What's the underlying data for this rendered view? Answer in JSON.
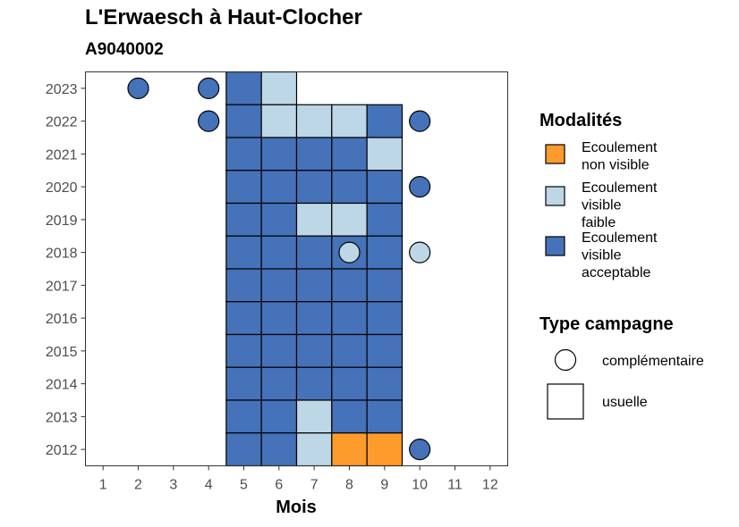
{
  "chart_data": {
    "type": "heatmap",
    "title": "L'Erwaesch à Haut-Clocher",
    "subtitle": "A9040002",
    "xlabel": "Mois",
    "ylabel": "",
    "x_ticks": [
      "1",
      "2",
      "3",
      "4",
      "5",
      "6",
      "7",
      "8",
      "9",
      "10",
      "11",
      "12"
    ],
    "y_ticks": [
      "2023",
      "2022",
      "2021",
      "2020",
      "2019",
      "2018",
      "2017",
      "2016",
      "2015",
      "2014",
      "2013",
      "2012"
    ],
    "xlim": [
      0.5,
      12.5
    ],
    "ylim": [
      2011.5,
      2023.5
    ],
    "grid": false,
    "legend_position": "right",
    "colors": {
      "non_visible": "#FE9B2D",
      "faible": "#BDD7E7",
      "acceptable": "#4572B8"
    },
    "legend": {
      "modalites_title": "Modalités",
      "modalites": [
        {
          "key": "non_visible",
          "lines": [
            "Ecoulement",
            "non visible"
          ]
        },
        {
          "key": "faible",
          "lines": [
            "Ecoulement",
            "visible",
            "faible"
          ]
        },
        {
          "key": "acceptable",
          "lines": [
            "Ecoulement",
            "visible",
            "acceptable"
          ]
        }
      ],
      "type_title": "Type campagne",
      "types": [
        {
          "key": "complementaire",
          "label": "complémentaire"
        },
        {
          "key": "usuelle",
          "label": "usuelle"
        }
      ]
    },
    "usuelle": [
      {
        "year": 2023,
        "month": 5,
        "value": "acceptable"
      },
      {
        "year": 2023,
        "month": 6,
        "value": "faible"
      },
      {
        "year": 2022,
        "month": 5,
        "value": "acceptable"
      },
      {
        "year": 2022,
        "month": 6,
        "value": "faible"
      },
      {
        "year": 2022,
        "month": 7,
        "value": "faible"
      },
      {
        "year": 2022,
        "month": 8,
        "value": "faible"
      },
      {
        "year": 2022,
        "month": 9,
        "value": "acceptable"
      },
      {
        "year": 2021,
        "month": 5,
        "value": "acceptable"
      },
      {
        "year": 2021,
        "month": 6,
        "value": "acceptable"
      },
      {
        "year": 2021,
        "month": 7,
        "value": "acceptable"
      },
      {
        "year": 2021,
        "month": 8,
        "value": "acceptable"
      },
      {
        "year": 2021,
        "month": 9,
        "value": "faible"
      },
      {
        "year": 2020,
        "month": 5,
        "value": "acceptable"
      },
      {
        "year": 2020,
        "month": 6,
        "value": "acceptable"
      },
      {
        "year": 2020,
        "month": 7,
        "value": "acceptable"
      },
      {
        "year": 2020,
        "month": 8,
        "value": "acceptable"
      },
      {
        "year": 2020,
        "month": 9,
        "value": "acceptable"
      },
      {
        "year": 2019,
        "month": 5,
        "value": "acceptable"
      },
      {
        "year": 2019,
        "month": 6,
        "value": "acceptable"
      },
      {
        "year": 2019,
        "month": 7,
        "value": "faible"
      },
      {
        "year": 2019,
        "month": 8,
        "value": "faible"
      },
      {
        "year": 2019,
        "month": 9,
        "value": "acceptable"
      },
      {
        "year": 2018,
        "month": 5,
        "value": "acceptable"
      },
      {
        "year": 2018,
        "month": 6,
        "value": "acceptable"
      },
      {
        "year": 2018,
        "month": 7,
        "value": "acceptable"
      },
      {
        "year": 2018,
        "month": 8,
        "value": "acceptable"
      },
      {
        "year": 2018,
        "month": 9,
        "value": "acceptable"
      },
      {
        "year": 2017,
        "month": 5,
        "value": "acceptable"
      },
      {
        "year": 2017,
        "month": 6,
        "value": "acceptable"
      },
      {
        "year": 2017,
        "month": 7,
        "value": "acceptable"
      },
      {
        "year": 2017,
        "month": 8,
        "value": "acceptable"
      },
      {
        "year": 2017,
        "month": 9,
        "value": "acceptable"
      },
      {
        "year": 2016,
        "month": 5,
        "value": "acceptable"
      },
      {
        "year": 2016,
        "month": 6,
        "value": "acceptable"
      },
      {
        "year": 2016,
        "month": 7,
        "value": "acceptable"
      },
      {
        "year": 2016,
        "month": 8,
        "value": "acceptable"
      },
      {
        "year": 2016,
        "month": 9,
        "value": "acceptable"
      },
      {
        "year": 2015,
        "month": 5,
        "value": "acceptable"
      },
      {
        "year": 2015,
        "month": 6,
        "value": "acceptable"
      },
      {
        "year": 2015,
        "month": 7,
        "value": "acceptable"
      },
      {
        "year": 2015,
        "month": 8,
        "value": "acceptable"
      },
      {
        "year": 2015,
        "month": 9,
        "value": "acceptable"
      },
      {
        "year": 2014,
        "month": 5,
        "value": "acceptable"
      },
      {
        "year": 2014,
        "month": 6,
        "value": "acceptable"
      },
      {
        "year": 2014,
        "month": 7,
        "value": "acceptable"
      },
      {
        "year": 2014,
        "month": 8,
        "value": "acceptable"
      },
      {
        "year": 2014,
        "month": 9,
        "value": "acceptable"
      },
      {
        "year": 2013,
        "month": 5,
        "value": "acceptable"
      },
      {
        "year": 2013,
        "month": 6,
        "value": "acceptable"
      },
      {
        "year": 2013,
        "month": 7,
        "value": "faible"
      },
      {
        "year": 2013,
        "month": 8,
        "value": "acceptable"
      },
      {
        "year": 2013,
        "month": 9,
        "value": "acceptable"
      },
      {
        "year": 2012,
        "month": 5,
        "value": "acceptable"
      },
      {
        "year": 2012,
        "month": 6,
        "value": "acceptable"
      },
      {
        "year": 2012,
        "month": 7,
        "value": "faible"
      },
      {
        "year": 2012,
        "month": 8,
        "value": "non_visible"
      },
      {
        "year": 2012,
        "month": 9,
        "value": "non_visible"
      }
    ],
    "complementaire": [
      {
        "year": 2023,
        "month": 2,
        "value": "acceptable"
      },
      {
        "year": 2023,
        "month": 4,
        "value": "acceptable"
      },
      {
        "year": 2022,
        "month": 4,
        "value": "acceptable"
      },
      {
        "year": 2022,
        "month": 10,
        "value": "acceptable"
      },
      {
        "year": 2020,
        "month": 10,
        "value": "acceptable"
      },
      {
        "year": 2018,
        "month": 8,
        "value": "faible"
      },
      {
        "year": 2018,
        "month": 10,
        "value": "faible"
      },
      {
        "year": 2012,
        "month": 10,
        "value": "acceptable"
      }
    ]
  }
}
